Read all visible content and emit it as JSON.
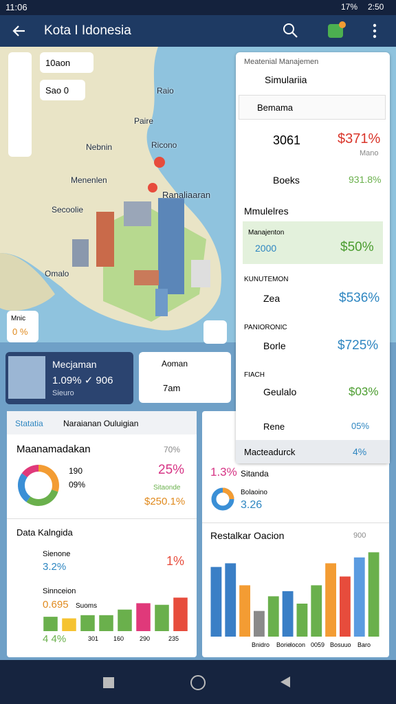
{
  "status_bar": {
    "time": "11:06",
    "battery": "17%",
    "clock": "2:50"
  },
  "app_bar": {
    "title": "Kota I Idonesia"
  },
  "map": {
    "controls": [
      "10aon",
      "Sao 0"
    ],
    "labels": [
      "Raio",
      "Paire",
      "Nebnin",
      "Ricono",
      "Menenlen",
      "Ranaliaaran",
      "Secoolie",
      "Omalo"
    ],
    "badge": {
      "title": "Mnic",
      "value": "0 %"
    }
  },
  "cards": [
    {
      "title": "Mecjaman",
      "stats": "1.09% ✓ 906",
      "subtitle": "Sieuro"
    },
    {
      "title": "Aoman",
      "time": "7am"
    }
  ],
  "panel": {
    "header": "Meatenial Manajemen",
    "dropdown": "Simulariia",
    "search": "Bemama",
    "rows": [
      {
        "label": "3061",
        "value": "$371%",
        "note": "Mano"
      },
      {
        "label": "Boeks",
        "value": "931.8%"
      }
    ],
    "section": "Mmulelres",
    "highlight": {
      "title": "Manajenton",
      "label": "2000",
      "value": "$50%"
    },
    "groups": [
      {
        "heading": "KUNUTEMON",
        "label": "Zea",
        "value": "$536%"
      },
      {
        "heading": "PANIORONIC",
        "label": "Borle",
        "value": "$725%"
      },
      {
        "heading": "FIACH",
        "label": "Geulalo",
        "value": "$03%"
      }
    ],
    "extra": [
      {
        "label": "Rene",
        "value": "05%"
      },
      {
        "label": "Macteadurck",
        "value": "4%"
      }
    ]
  },
  "stats_panel": {
    "tabs": [
      "Statatia",
      "Naraianan Ouluigian"
    ],
    "title": "Maanamadakan",
    "title_value": "70%",
    "donut": {
      "values": [
        30,
        30,
        25,
        15
      ],
      "colors": [
        "#f39c33",
        "#6ab04c",
        "#3a8fd6",
        "#e0397a"
      ],
      "labels": [
        "190",
        "09%"
      ]
    },
    "highlight": "25%",
    "sub_label": "Sitaonde",
    "sub_value": "$250.1%",
    "list_title": "Data Kalngida",
    "items": [
      {
        "label": "Sienone",
        "value": "3.2%",
        "extra": "1%"
      },
      {
        "label": "Sinnceion",
        "value": "0.695",
        "extra": "Suoms"
      },
      {
        "value": "4 4%"
      }
    ],
    "bars": {
      "values": [
        18,
        16,
        20,
        20,
        27,
        35,
        33,
        42
      ],
      "colors": [
        "#6ab04c",
        "#f5c331",
        "#6ab04c",
        "#6ab04c",
        "#6ab04c",
        "#e0397a",
        "#6ab04c",
        "#e74c3c"
      ],
      "ylim": [
        0,
        50
      ],
      "axis_labels": [
        "301",
        "160",
        "290",
        "235"
      ]
    }
  },
  "chart_panel": {
    "value": "1.3%",
    "label": "Sitanda",
    "sub_label": "Bolaoino",
    "sub_value": "3.26",
    "chart_title": "Restalkar Oacion",
    "chart_value": "900",
    "bars": {
      "values": [
        95,
        100,
        70,
        35,
        55,
        62,
        45,
        70,
        100,
        82,
        108,
        115
      ],
      "colors": [
        "#3a7fc6",
        "#3a7fc6",
        "#f39c33",
        "#8a8a8a",
        "#6ab04c",
        "#3a7fc6",
        "#6ab04c",
        "#6ab04c",
        "#f39c33",
        "#e74c3c",
        "#5a9be0",
        "#6ab04c"
      ],
      "ylim": [
        0,
        120
      ],
      "axis_labels": [
        "Bnidro",
        "Borie",
        "Iocon",
        "0059",
        "Bosuuo",
        "Baro"
      ]
    }
  }
}
